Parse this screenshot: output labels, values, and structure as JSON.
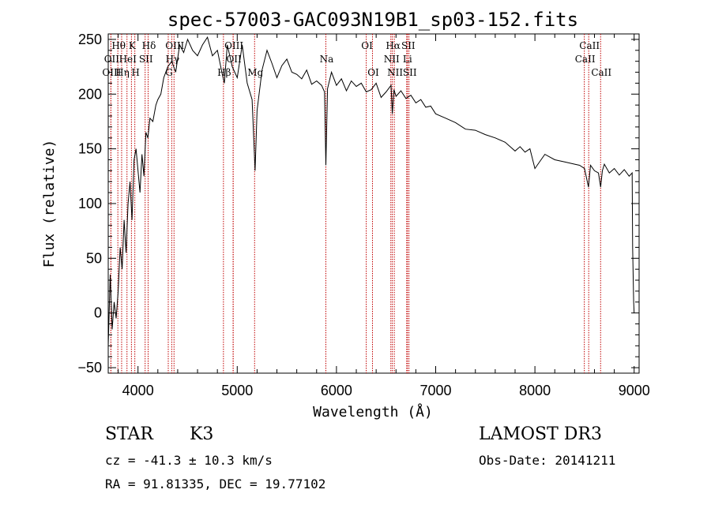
{
  "chart_data": {
    "type": "line",
    "title": "spec-57003-GAC093N19B1_sp03-152.fits",
    "xlabel": "Wavelength (Å)",
    "ylabel": "Flux (relative)",
    "xlim": [
      3700,
      9050
    ],
    "ylim": [
      -55,
      255
    ],
    "xticks": [
      4000,
      5000,
      6000,
      7000,
      8000,
      9000
    ],
    "yticks": [
      -50,
      0,
      50,
      100,
      150,
      200,
      250
    ],
    "series": [
      {
        "name": "flux",
        "x": [
          3700,
          3720,
          3740,
          3760,
          3780,
          3800,
          3820,
          3840,
          3860,
          3880,
          3900,
          3920,
          3940,
          3960,
          3980,
          4000,
          4020,
          4040,
          4060,
          4080,
          4100,
          4120,
          4150,
          4180,
          4200,
          4230,
          4260,
          4300,
          4340,
          4380,
          4420,
          4460,
          4500,
          4550,
          4600,
          4650,
          4700,
          4750,
          4800,
          4850,
          4870,
          4900,
          4950,
          5000,
          5050,
          5100,
          5150,
          5180,
          5200,
          5250,
          5300,
          5350,
          5400,
          5450,
          5500,
          5550,
          5600,
          5650,
          5700,
          5750,
          5800,
          5850,
          5880,
          5893,
          5910,
          5950,
          6000,
          6050,
          6100,
          6150,
          6200,
          6250,
          6300,
          6350,
          6400,
          6450,
          6500,
          6550,
          6563,
          6580,
          6600,
          6650,
          6700,
          6750,
          6800,
          6850,
          6900,
          6950,
          7000,
          7100,
          7200,
          7300,
          7400,
          7500,
          7600,
          7700,
          7800,
          7850,
          7900,
          7950,
          8000,
          8100,
          8200,
          8300,
          8400,
          8450,
          8500,
          8540,
          8560,
          8600,
          8640,
          8662,
          8680,
          8700,
          8750,
          8800,
          8850,
          8900,
          8950,
          8980,
          8985,
          8995,
          9000
        ],
        "values": [
          -30,
          35,
          -15,
          10,
          -5,
          20,
          60,
          40,
          85,
          55,
          100,
          120,
          85,
          140,
          150,
          130,
          110,
          145,
          125,
          165,
          160,
          178,
          175,
          190,
          195,
          200,
          215,
          225,
          230,
          220,
          245,
          238,
          250,
          240,
          235,
          245,
          252,
          235,
          240,
          218,
          210,
          245,
          225,
          215,
          245,
          210,
          195,
          130,
          185,
          222,
          240,
          228,
          215,
          226,
          232,
          220,
          218,
          214,
          222,
          209,
          212,
          208,
          202,
          135,
          205,
          220,
          208,
          214,
          203,
          212,
          207,
          210,
          202,
          204,
          210,
          197,
          202,
          208,
          182,
          204,
          198,
          203,
          196,
          199,
          192,
          195,
          188,
          189,
          182,
          178,
          174,
          168,
          167,
          163,
          160,
          156,
          148,
          152,
          147,
          150,
          132,
          145,
          140,
          138,
          136,
          135,
          132,
          115,
          135,
          130,
          128,
          115,
          130,
          136,
          128,
          132,
          126,
          131,
          125,
          128,
          60,
          10,
          0
        ]
      }
    ],
    "lines": [
      {
        "name": "Hθ",
        "wavelength": 3797,
        "row": 1
      },
      {
        "name": "OII",
        "wavelength": 3727,
        "row": 2
      },
      {
        "name": "OIII",
        "wavelength": 3727,
        "row": 3
      },
      {
        "name": "HeI",
        "wavelength": 3889,
        "row": 2
      },
      {
        "name": "Hη",
        "wavelength": 3835,
        "row": 3
      },
      {
        "name": "K",
        "wavelength": 3934,
        "row": 1
      },
      {
        "name": "SII",
        "wavelength": 4072,
        "row": 2
      },
      {
        "name": "H",
        "wavelength": 3968,
        "row": 3
      },
      {
        "name": "Hδ",
        "wavelength": 4102,
        "row": 1
      },
      {
        "name": "OIII",
        "wavelength": 4363,
        "row": 1
      },
      {
        "name": "Hγ",
        "wavelength": 4340,
        "row": 2
      },
      {
        "name": "G",
        "wavelength": 4305,
        "row": 3
      },
      {
        "name": "OIII",
        "wavelength": 4959,
        "row": 1
      },
      {
        "name": "OII",
        "wavelength": 4959,
        "row": 2
      },
      {
        "name": "Hβ",
        "wavelength": 4861,
        "row": 3
      },
      {
        "name": "Mg",
        "wavelength": 5175,
        "row": 3
      },
      {
        "name": "Na",
        "wavelength": 5893,
        "row": 2
      },
      {
        "name": "OI",
        "wavelength": 6300,
        "row": 1
      },
      {
        "name": "OI",
        "wavelength": 6363,
        "row": 3
      },
      {
        "name": "Hα",
        "wavelength": 6563,
        "row": 1
      },
      {
        "name": "SII",
        "wavelength": 6716,
        "row": 1
      },
      {
        "name": "NII",
        "wavelength": 6548,
        "row": 2
      },
      {
        "name": "Li",
        "wavelength": 6708,
        "row": 2
      },
      {
        "name": "NII",
        "wavelength": 6583,
        "row": 3
      },
      {
        "name": "SII",
        "wavelength": 6731,
        "row": 3
      },
      {
        "name": "CaII",
        "wavelength": 8542,
        "row": 1
      },
      {
        "name": "CaII",
        "wavelength": 8498,
        "row": 2
      },
      {
        "name": "CaII",
        "wavelength": 8662,
        "row": 3
      }
    ]
  },
  "info": {
    "object_class": "STAR",
    "subclass": "K3",
    "survey": "LAMOST DR3",
    "redshift": "cz = -41.3 ± 10.3 km/s",
    "obs_date": "Obs-Date: 20141211",
    "coords": "RA =  91.81335, DEC =  19.77102"
  }
}
